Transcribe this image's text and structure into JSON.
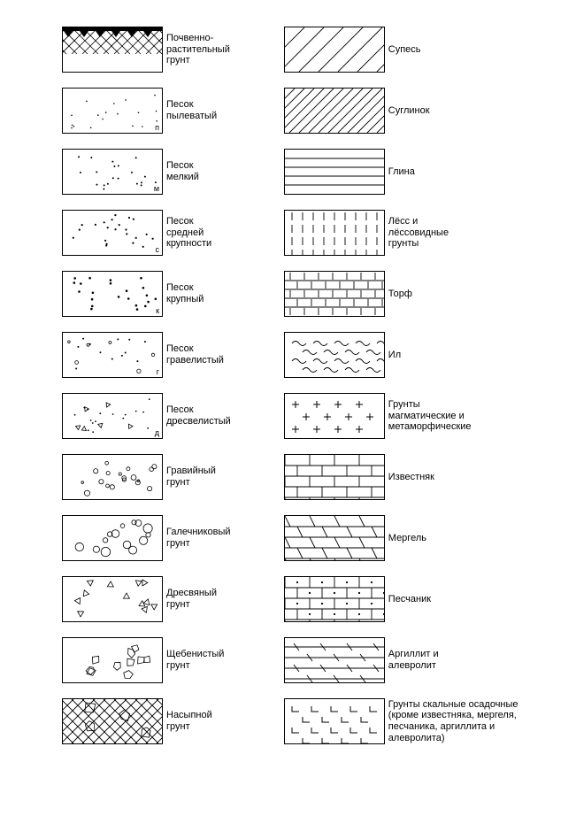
{
  "layout": {
    "swatch_width": 112,
    "swatch_height": 50,
    "border_color": "#000000",
    "background": "#ffffff",
    "label_fontsize": 11
  },
  "columns": [
    {
      "items": [
        {
          "pattern": "soil-top",
          "label": "Почвенно-\nрастительный\nгрунт"
        },
        {
          "pattern": "dots-p",
          "label": "Песок\nпылеватый",
          "corner": "п"
        },
        {
          "pattern": "dots-m",
          "label": "Песок\nмелкий",
          "corner": "м"
        },
        {
          "pattern": "dots-s",
          "label": "Песок\nсредней\nкрупности",
          "corner": "с"
        },
        {
          "pattern": "dots-k",
          "label": "Песок\nкрупный",
          "corner": "к"
        },
        {
          "pattern": "dots-grav",
          "label": "Песок\nгравелистый",
          "corner": "г"
        },
        {
          "pattern": "dresv-sand",
          "label": "Песок\nдресвелистый",
          "corner": "д"
        },
        {
          "pattern": "gravel",
          "label": "Гравийный\nгрунт"
        },
        {
          "pattern": "pebble",
          "label": "Галечниковый\nгрунт"
        },
        {
          "pattern": "dresva",
          "label": "Дресвяный\nгрунт"
        },
        {
          "pattern": "rubble",
          "label": "Щебенистый\nгрунт"
        },
        {
          "pattern": "fill",
          "label": "Насыпной\nгрунт"
        }
      ]
    },
    {
      "items": [
        {
          "pattern": "hatch-sparse",
          "label": "Супесь"
        },
        {
          "pattern": "hatch-dense",
          "label": "Суглинок"
        },
        {
          "pattern": "hstripes",
          "label": "Глина"
        },
        {
          "pattern": "vdash",
          "label": "Лёсс и\nлёссовидные\nгрунты"
        },
        {
          "pattern": "peat",
          "label": "Торф"
        },
        {
          "pattern": "silt",
          "label": "Ил"
        },
        {
          "pattern": "plus",
          "label": "Грунты\nмагматические и\nметаморфические"
        },
        {
          "pattern": "brick",
          "label": "Известняк"
        },
        {
          "pattern": "brick-skew",
          "label": "Мергель"
        },
        {
          "pattern": "brick-dot",
          "label": "Песчаник"
        },
        {
          "pattern": "hdash",
          "label": "Аргиллит и\nалевролит"
        },
        {
          "pattern": "angles",
          "label": "Грунты скальные осадочные\n(кроме известняка, мергеля,\nпесчаника, аргиллита и\nалевролита)"
        }
      ]
    }
  ]
}
